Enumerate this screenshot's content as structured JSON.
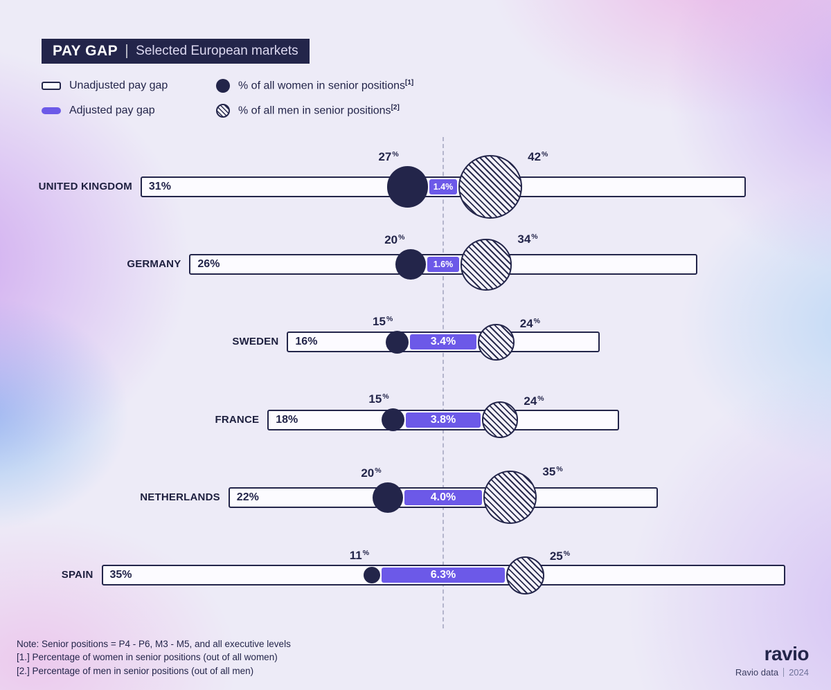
{
  "title": {
    "main": "PAY GAP",
    "subtitle": "Selected European markets"
  },
  "legend": {
    "unadjusted": "Unadjusted pay gap",
    "adjusted": "Adjusted pay gap",
    "women": {
      "label": "% of all women in senior positions",
      "sup": "[1]"
    },
    "men": {
      "label": "% of all men in senior positions",
      "sup": "[2]"
    }
  },
  "chart_data": {
    "type": "bar",
    "title": "PAY GAP | Selected European markets",
    "categories": [
      "UNITED KINGDOM",
      "GERMANY",
      "SWEDEN",
      "FRANCE",
      "NETHERLANDS",
      "SPAIN"
    ],
    "series": [
      {
        "name": "Unadjusted pay gap (%)",
        "values": [
          31,
          26,
          16,
          18,
          22,
          35
        ]
      },
      {
        "name": "Adjusted pay gap (%)",
        "values": [
          1.4,
          1.6,
          3.4,
          3.8,
          4.0,
          6.3
        ]
      },
      {
        "name": "% of all women in senior positions",
        "values": [
          27,
          20,
          15,
          15,
          20,
          11
        ]
      },
      {
        "name": "% of all men in senior positions",
        "values": [
          42,
          34,
          24,
          24,
          35,
          25
        ]
      }
    ],
    "value_labels": {
      "unadjusted": [
        "31%",
        "26%",
        "16%",
        "18%",
        "22%",
        "35%"
      ],
      "adjusted": [
        "1.4%",
        "1.6%",
        "3.4%",
        "3.8%",
        "4.0%",
        "6.3%"
      ],
      "women": [
        "27%",
        "20%",
        "15%",
        "15%",
        "20%",
        "11%"
      ],
      "men": [
        "42%",
        "34%",
        "24%",
        "24%",
        "35%",
        "25%"
      ]
    },
    "layout": {
      "bars_centered_on_axis": true,
      "axis": "dashed vertical center line",
      "legend_position": "top-left",
      "grid": false
    }
  },
  "notes": {
    "line1": "Note: Senior positions = P4 - P6, M3 - M5, and all executive levels",
    "line2": "[1.] Percentage of women in senior positions (out of all women)",
    "line3": "[2.] Percentage of men in senior positions (out of all men)"
  },
  "footer": {
    "logo": "ravio",
    "source": "Ravio data",
    "year": "2024"
  },
  "colors": {
    "navy": "#23254a",
    "purple": "#6c59e8",
    "bar_fill": "#fcfbff",
    "background": "#edebf7"
  }
}
